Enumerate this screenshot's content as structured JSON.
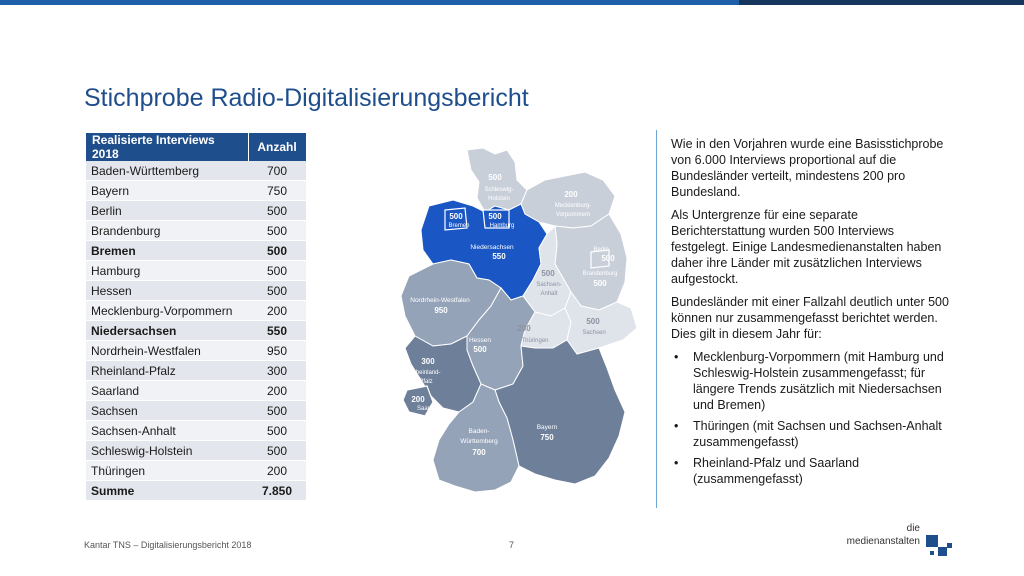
{
  "title": "Stichprobe Radio-Digitalisierungsbericht",
  "table": {
    "headers": [
      "Realisierte Interviews 2018",
      "Anzahl"
    ],
    "rows": [
      {
        "land": "Baden-Württemberg",
        "count": "700"
      },
      {
        "land": "Bayern",
        "count": "750"
      },
      {
        "land": "Berlin",
        "count": "500"
      },
      {
        "land": "Brandenburg",
        "count": "500"
      },
      {
        "land": "Bremen",
        "count": "500"
      },
      {
        "land": "Hamburg",
        "count": "500"
      },
      {
        "land": "Hessen",
        "count": "500"
      },
      {
        "land": "Mecklenburg-Vorpommern",
        "count": "200"
      },
      {
        "land": "Niedersachsen",
        "count": "550"
      },
      {
        "land": "Nordrhein-Westfalen",
        "count": "950"
      },
      {
        "land": "Rheinland-Pfalz",
        "count": "300"
      },
      {
        "land": "Saarland",
        "count": "200"
      },
      {
        "land": "Sachsen",
        "count": "500"
      },
      {
        "land": "Sachsen-Anhalt",
        "count": "500"
      },
      {
        "land": "Schleswig-Holstein",
        "count": "500"
      },
      {
        "land": "Thüringen",
        "count": "200"
      },
      {
        "land": "Summe",
        "count": "7.850"
      }
    ]
  },
  "map": {
    "labels": [
      {
        "name": "Schleswig-Holstein",
        "line1": "Schleswig-",
        "line2": "Holstein",
        "value": "500"
      },
      {
        "name": "Mecklenburg-Vorpommern",
        "line1": "Mecklenburg-",
        "line2": "Vorpommern",
        "value": "200"
      },
      {
        "name": "Bremen",
        "line1": "Bremen",
        "value": "500"
      },
      {
        "name": "Hamburg",
        "line1": "Hamburg",
        "value": "500"
      },
      {
        "name": "Niedersachsen",
        "line1": "Niedersachsen",
        "value": "550"
      },
      {
        "name": "Berlin",
        "line1": "Berlin",
        "value": "500"
      },
      {
        "name": "Brandenburg",
        "line1": "Brandenburg",
        "value": "500"
      },
      {
        "name": "Sachsen-Anhalt",
        "line1": "Sachsen-",
        "line2": "Anhalt",
        "value": "500"
      },
      {
        "name": "Nordrhein-Westfalen",
        "line1": "Nordrhein-Westfalen",
        "value": "950"
      },
      {
        "name": "Sachsen",
        "line1": "Sachsen",
        "value": "500"
      },
      {
        "name": "Thüringen",
        "line1": "Thüringen",
        "value": "200"
      },
      {
        "name": "Hessen",
        "line1": "Hessen",
        "value": "500"
      },
      {
        "name": "Rheinland-Pfalz",
        "line1": "Rheinland-",
        "line2": "Pfalz",
        "value": "300"
      },
      {
        "name": "Saarland",
        "line1": "Saarland",
        "value": "200"
      },
      {
        "name": "Bayern",
        "line1": "Bayern",
        "value": "750"
      },
      {
        "name": "Baden-Württemberg",
        "line1": "Baden-",
        "line2": "Württemberg",
        "value": "700"
      }
    ],
    "colors": {
      "highlight": "#1a56c4",
      "dark": "#6e7f99",
      "mid": "#95a3b8",
      "light": "#c9cfd9",
      "lightest": "#dfe3ea"
    }
  },
  "text": {
    "p1": "Wie in den Vorjahren wurde eine Basisstichprobe von 6.000 Interviews proportional auf die Bundesländer verteilt, mindestens 200 pro Bundesland.",
    "p2": "Als Untergrenze für eine separate Berichterstattung wurden 500 Interviews festgelegt. Einige Landesmedienanstalten haben daher ihre Länder mit zusätzlichen Interviews aufgestockt.",
    "p3": "Bundesländer mit einer Fallzahl deutlich unter 500 können nur zusammengefasst berichtet werden. Dies gilt in diesem Jahr für:",
    "bullet_char": "•",
    "bullets": [
      "Mecklenburg-Vorpommern (mit Hamburg und Schleswig-Holstein zusammengefasst; für längere Trends zusätzlich mit Niedersachsen und Bremen)",
      "Thüringen (mit Sachsen und Sachsen-Anhalt zusammengefasst)",
      "Rheinland-Pfalz und Saarland (zusammengefasst)"
    ]
  },
  "footer": {
    "source": "Kantar TNS – Digitalisierungsbericht 2018",
    "page": "7"
  },
  "logo": {
    "line1": "die",
    "line2": "medienanstalten"
  }
}
